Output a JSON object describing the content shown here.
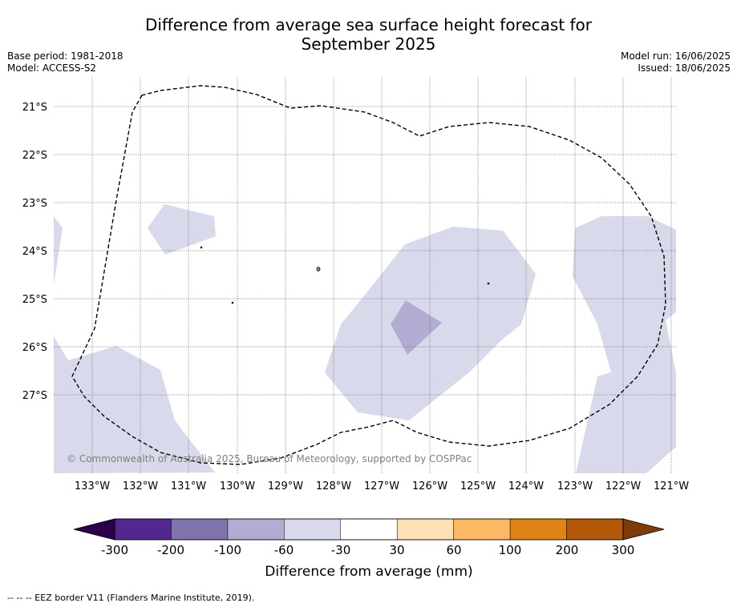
{
  "title_line1": "Difference from average sea surface height forecast for",
  "title_line2": "September 2025",
  "base_period": "Base period: 1981-2018",
  "model": "Model: ACCESS-S2",
  "model_run": "Model run: 16/06/2025",
  "issued": "Issued: 18/06/2025",
  "copyright": "© Commonwealth of Australia 2025, Bureau of Meteorology, supported by COSPPac",
  "footnote": "--  --  -- EEZ border V11 (Flanders Marine Institute, 2019).",
  "map": {
    "lat_labels": [
      "21°S",
      "22°S",
      "23°S",
      "24°S",
      "25°S",
      "26°S",
      "27°S"
    ],
    "lon_labels": [
      "133°W",
      "132°W",
      "131°W",
      "130°W",
      "129°W",
      "128°W",
      "127°W",
      "126°W",
      "125°W",
      "124°W",
      "123°W",
      "122°W",
      "121°W"
    ]
  },
  "colorbar": {
    "label": "Difference from average (mm)",
    "ticks": [
      "-300",
      "-200",
      "-100",
      "-60",
      "-30",
      "30",
      "60",
      "100",
      "200",
      "300"
    ],
    "colors": [
      "#54278f",
      "#8073ac",
      "#b2abd2",
      "#d8daeb",
      "#ffffff",
      "#fee0b6",
      "#fdb863",
      "#e08214",
      "#b35806"
    ],
    "under_color": "#2d004b",
    "over_color": "#7f3b08"
  }
}
